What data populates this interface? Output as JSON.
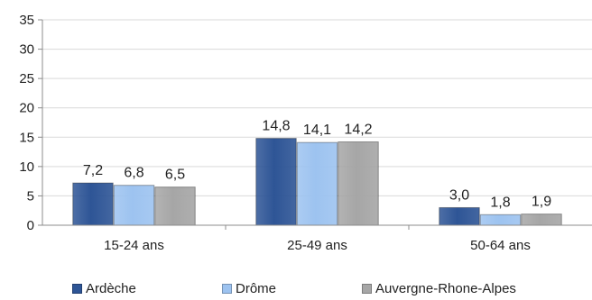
{
  "chart_data": {
    "type": "bar",
    "categories": [
      "15-24 ans",
      "25-49 ans",
      "50-64 ans"
    ],
    "series": [
      {
        "name": "Ardèche",
        "values": [
          7.2,
          14.8,
          3.0
        ],
        "labels": [
          "7,2",
          "14,8",
          "3,0"
        ],
        "color": "#2E5596"
      },
      {
        "name": "Drôme",
        "values": [
          6.8,
          14.1,
          1.8
        ],
        "labels": [
          "6,8",
          "14,1",
          "1,8"
        ],
        "color": "#9DC3F0"
      },
      {
        "name": "Auvergne-Rhone-Alpes",
        "values": [
          6.5,
          14.2,
          1.9
        ],
        "labels": [
          "6,5",
          "14,2",
          "1,9"
        ],
        "color": "#A6A6A6"
      }
    ],
    "ylim": [
      0,
      35
    ],
    "yticks": [
      "0",
      "5",
      "10",
      "15",
      "20",
      "25",
      "30",
      "35"
    ],
    "grid": true,
    "legend": "bottom"
  }
}
